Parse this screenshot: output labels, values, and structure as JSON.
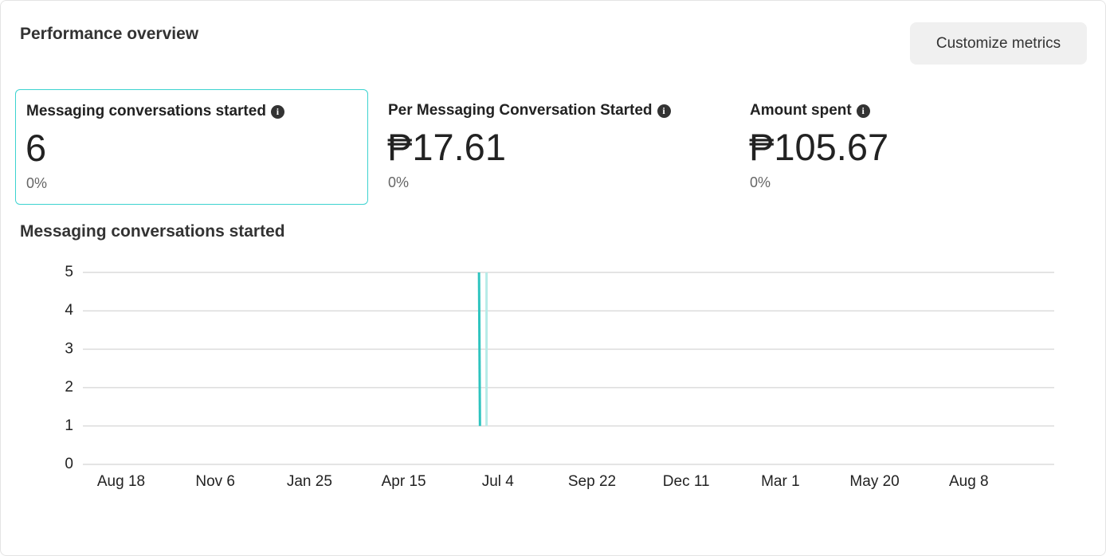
{
  "header": {
    "title": "Performance overview",
    "button": "Customize metrics"
  },
  "metrics": [
    {
      "label": "Messaging conversations started",
      "value": "6",
      "change": "0%"
    },
    {
      "label": "Per Messaging Conversation Started",
      "value": "₱17.61",
      "change": "0%"
    },
    {
      "label": "Amount spent",
      "value": "₱105.67",
      "change": "0%"
    }
  ],
  "chart_data": {
    "type": "line",
    "title": "Messaging conversations started",
    "xlim": [
      -0.406,
      9.907
    ],
    "xticks": [
      {
        "value": 0,
        "label": "Aug 18"
      },
      {
        "value": 1,
        "label": "Nov 6"
      },
      {
        "value": 2,
        "label": "Jan 25"
      },
      {
        "value": 3,
        "label": "Apr 15"
      },
      {
        "value": 4,
        "label": "Jul 4"
      },
      {
        "value": 5,
        "label": "Sep 22"
      },
      {
        "value": 6,
        "label": "Dec 11"
      },
      {
        "value": 7,
        "label": "Mar 1"
      },
      {
        "value": 8,
        "label": "May 20"
      },
      {
        "value": 9,
        "label": "Aug 8"
      }
    ],
    "ylim": [
      0,
      5
    ],
    "yticks": [
      0,
      1,
      2,
      3,
      4,
      5
    ],
    "grid": true,
    "series": [
      {
        "color": "#2ec4bf",
        "x": [
          3.8,
          3.81
        ],
        "values": [
          5,
          1
        ]
      },
      {
        "color": "#b6ebe8",
        "x": [
          3.88,
          3.88
        ],
        "values": [
          5,
          1
        ]
      }
    ]
  }
}
